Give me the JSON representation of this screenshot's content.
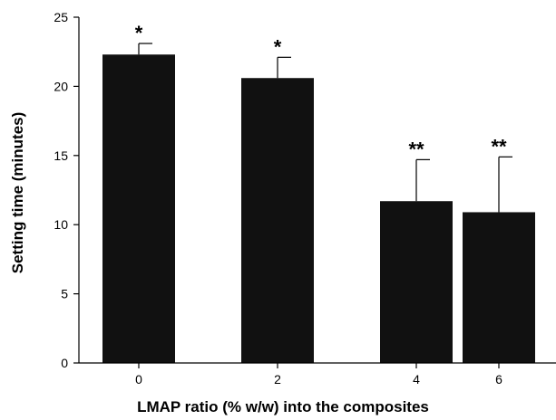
{
  "chart_data": {
    "type": "bar",
    "title": "",
    "xlabel": "LMAP ratio (% w/w) into the composites",
    "ylabel": "Setting time (minutes)",
    "categories": [
      "0",
      "2",
      "4",
      "6"
    ],
    "values": [
      22.3,
      20.6,
      11.7,
      10.9
    ],
    "errors": [
      0.8,
      1.5,
      3.0,
      4.0
    ],
    "significance": [
      "*",
      "*",
      "**",
      "**"
    ],
    "ylim": [
      0,
      25
    ],
    "yticks": [
      "0",
      "5",
      "10",
      "15",
      "20",
      "25"
    ],
    "grid": false,
    "bar_color": "#111111"
  }
}
